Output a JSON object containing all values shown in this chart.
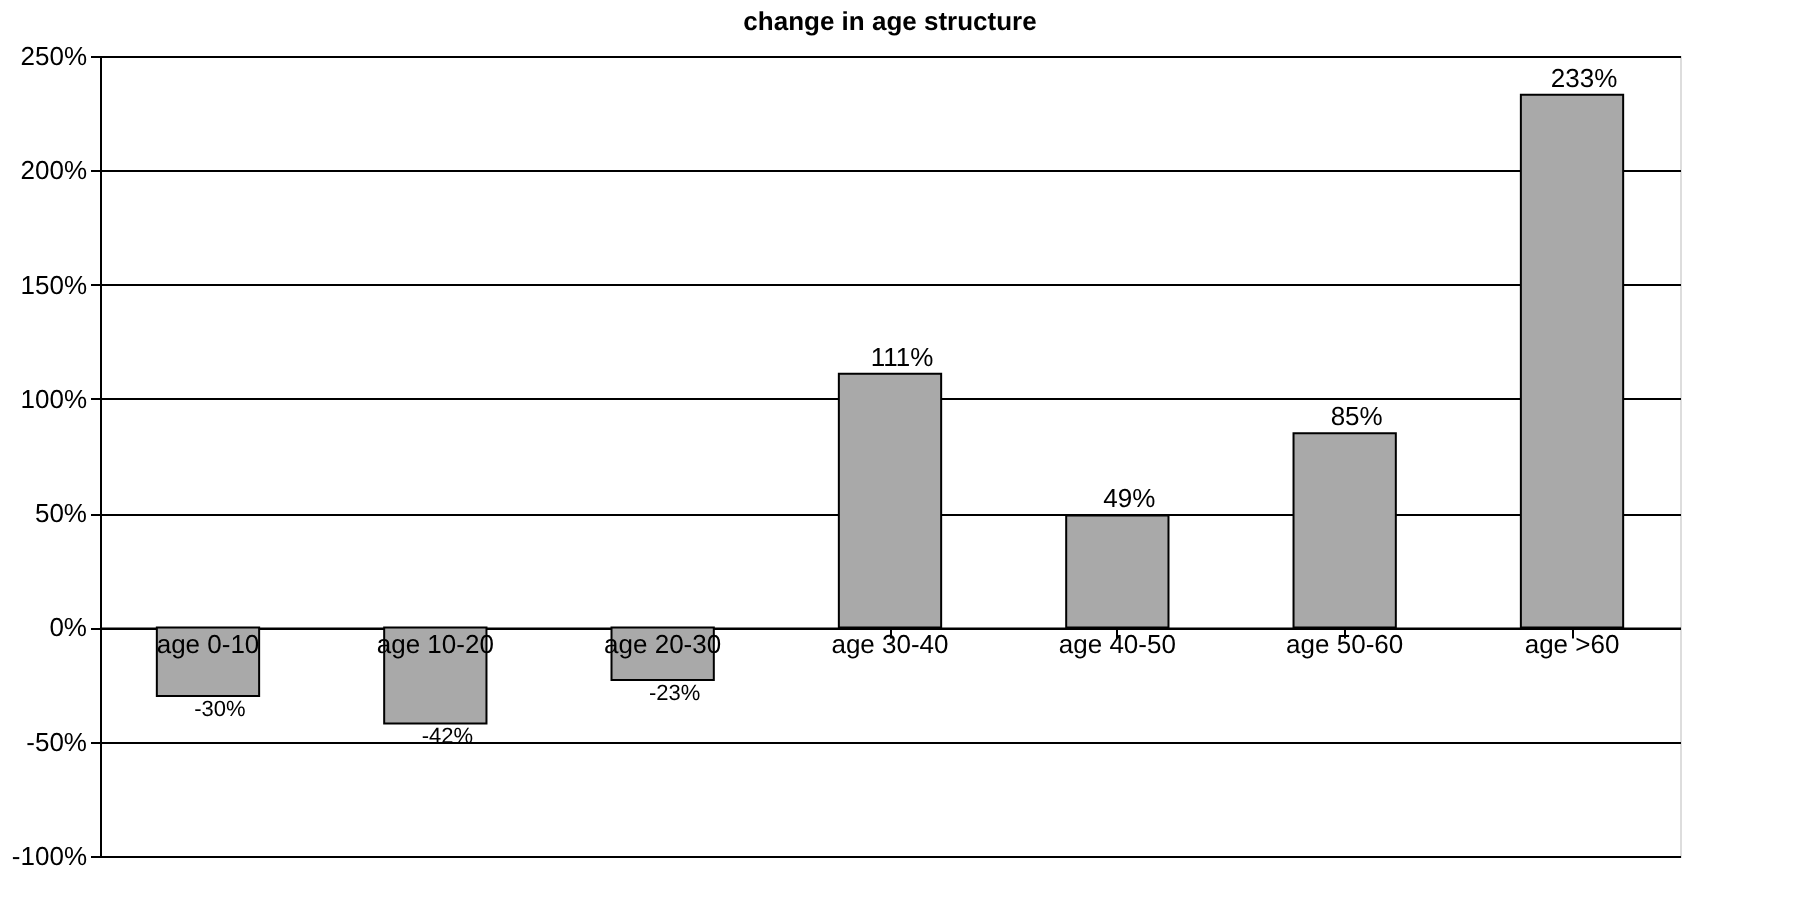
{
  "chart_data": {
    "type": "bar",
    "title": "change in age structure",
    "categories": [
      "age 0-10",
      "age 10-20",
      "age 20-30",
      "age 30-40",
      "age 40-50",
      "age 50-60",
      "age >60"
    ],
    "series": [
      {
        "color": "#a9a9a9",
        "values": [
          -30,
          -42,
          -23,
          111,
          49,
          85,
          233
        ],
        "value_labels": [
          "-30%",
          "-42%",
          "-23%",
          "111%",
          "49%",
          "85%",
          "233%"
        ]
      }
    ],
    "ylim": [
      -100,
      250
    ],
    "yticks": [
      {
        "value": -100,
        "label": "-100%"
      },
      {
        "value": -50,
        "label": "-50%"
      },
      {
        "value": 0,
        "label": "0%"
      },
      {
        "value": 50,
        "label": "50%"
      },
      {
        "value": 100,
        "label": "100%"
      },
      {
        "value": 150,
        "label": "150%"
      },
      {
        "value": 200,
        "label": "200%"
      },
      {
        "value": 250,
        "label": "250%"
      }
    ],
    "grid": "y",
    "legend": false
  }
}
